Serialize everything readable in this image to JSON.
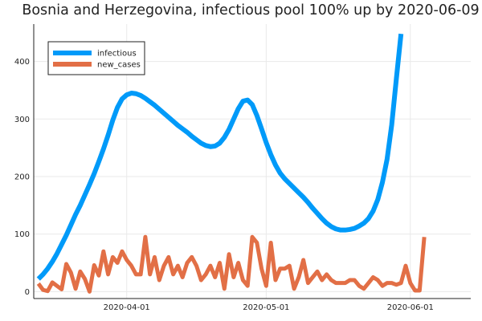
{
  "chart_data": {
    "type": "line",
    "title": "Bosnia and Herzegovina, infectious pool 100% up by 2020-06-09",
    "xlabel": "",
    "ylabel": "",
    "x_start": "2020-03-13",
    "xlim": [
      "2020-03-12",
      "2020-06-14"
    ],
    "ylim": [
      -12,
      465
    ],
    "x_ticks": [
      "2020-04-01",
      "2020-05-01",
      "2020-06-01"
    ],
    "y_ticks": [
      0,
      100,
      200,
      300,
      400
    ],
    "grid": true,
    "legend_position": "top-left",
    "series": [
      {
        "name": "infectious",
        "color": "#009AF9",
        "values": [
          22,
          30,
          40,
          52,
          66,
          82,
          98,
          116,
          134,
          150,
          168,
          186,
          205,
          226,
          248,
          272,
          298,
          320,
          335,
          342,
          345,
          344,
          341,
          336,
          330,
          324,
          317,
          310,
          303,
          296,
          289,
          283,
          277,
          270,
          264,
          258,
          254,
          252,
          253,
          258,
          268,
          282,
          300,
          318,
          331,
          333,
          325,
          306,
          283,
          259,
          238,
          220,
          206,
          196,
          188,
          180,
          172,
          164,
          155,
          145,
          136,
          127,
          119,
          113,
          109,
          107,
          107,
          108,
          110,
          114,
          119,
          127,
          140,
          160,
          190,
          230,
          290,
          370,
          448
        ]
      },
      {
        "name": "new_cases",
        "color": "#E26F46",
        "values": [
          14,
          3,
          1,
          16,
          10,
          4,
          48,
          33,
          5,
          35,
          22,
          0,
          46,
          28,
          70,
          30,
          60,
          50,
          70,
          55,
          45,
          30,
          30,
          95,
          30,
          60,
          20,
          45,
          60,
          30,
          45,
          25,
          50,
          60,
          45,
          20,
          30,
          45,
          25,
          50,
          5,
          65,
          25,
          50,
          20,
          10,
          95,
          85,
          40,
          10,
          85,
          20,
          40,
          40,
          45,
          5,
          25,
          55,
          15,
          25,
          35,
          20,
          30,
          20,
          15,
          15,
          15,
          20,
          20,
          10,
          5,
          15,
          25,
          20,
          10,
          15,
          15,
          12,
          15,
          45,
          15,
          2,
          2,
          95
        ]
      }
    ]
  }
}
